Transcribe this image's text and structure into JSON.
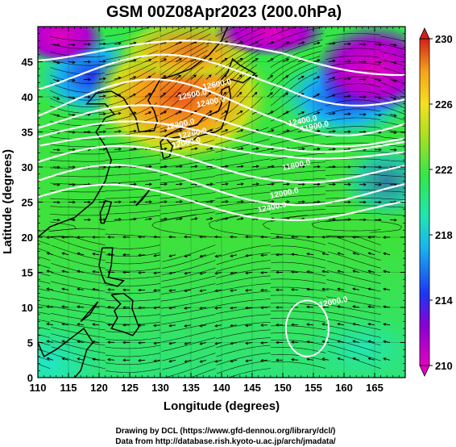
{
  "chart_data": {
    "type": "heatmap",
    "title": "GSM 00Z08Apr2023 (200.0hPa)",
    "xlabel": "Longitude (degrees)",
    "ylabel": "Latitude  (degrees)",
    "xlim": [
      110,
      170
    ],
    "ylim": [
      0,
      50
    ],
    "x_ticks": [
      "110",
      "115",
      "120",
      "125",
      "130",
      "135",
      "140",
      "145",
      "150",
      "155",
      "160",
      "165"
    ],
    "y_ticks": [
      "0",
      "5",
      "10",
      "15",
      "20",
      "25",
      "30",
      "35",
      "40",
      "45"
    ],
    "grid": true,
    "colorbar": {
      "range": [
        210,
        230
      ],
      "ticks": [
        "210",
        "214",
        "218",
        "222",
        "226",
        "230"
      ],
      "colors": [
        "#e300c2",
        "#6a00d8",
        "#1d36f2",
        "#18b4ef",
        "#20e6b0",
        "#33e64a",
        "#5fe02c",
        "#a8e022",
        "#f4e11f",
        "#f5a31b",
        "#ec5a1a",
        "#d3201a"
      ]
    },
    "contours": {
      "labels": [
        "12600.0",
        "12500.0",
        "12400.0",
        "12300.0",
        "12200.0",
        "12000.0",
        "11900.0",
        "11800.0",
        "12000.0",
        "12000.0",
        "12400.0",
        "12400.0"
      ]
    },
    "credits": [
      "Drawing by DCL (https://www.gfd-dennou.org/library/dcl/)",
      "Data from http://database.rish.kyoto-u.ac.jp/arch/jmadata/"
    ]
  }
}
